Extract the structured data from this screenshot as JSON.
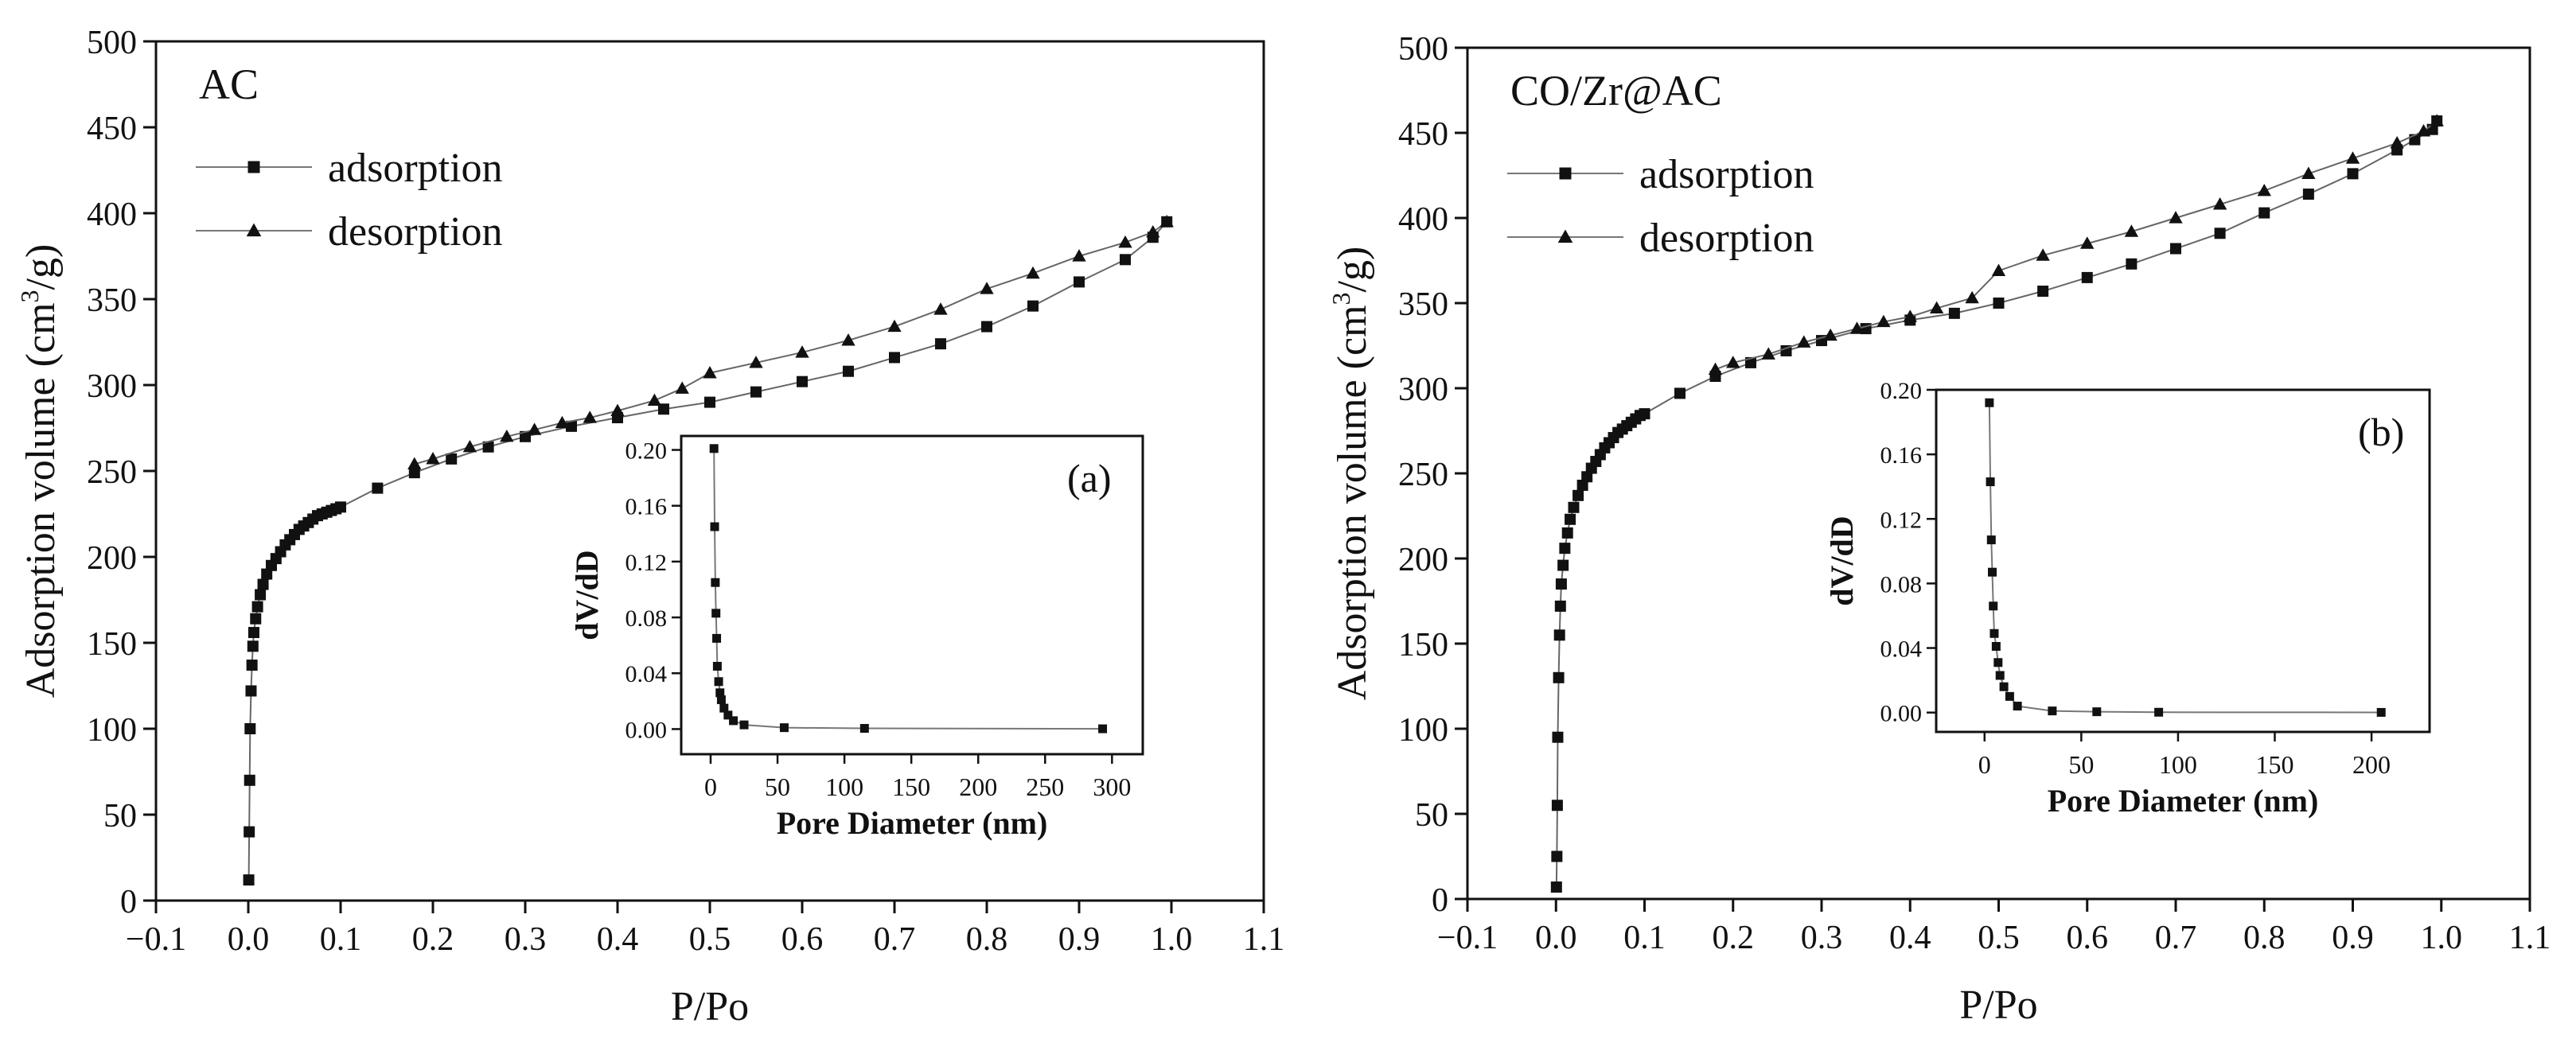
{
  "chart_data": [
    {
      "type": "line",
      "panel_label": "AC",
      "xlabel": "P/Po",
      "ylabel_main": "Adsorption volume (cm",
      "ylabel_sup": "3",
      "ylabel_tail": "/g)",
      "xlim": [
        -0.1,
        1.1
      ],
      "ylim": [
        0,
        500
      ],
      "xticks": [
        -0.1,
        0.0,
        0.1,
        0.2,
        0.3,
        0.4,
        0.5,
        0.6,
        0.7,
        0.8,
        0.9,
        1.0,
        1.1
      ],
      "xtick_labels": [
        "−0.1",
        "0.0",
        "0.1",
        "0.2",
        "0.3",
        "0.4",
        "0.5",
        "0.6",
        "0.7",
        "0.8",
        "0.9",
        "1.0",
        "1.1"
      ],
      "yticks": [
        0,
        50,
        100,
        150,
        200,
        250,
        300,
        350,
        400,
        450,
        500
      ],
      "ytick_labels": [
        "0",
        "50",
        "100",
        "150",
        "200",
        "250",
        "300",
        "350",
        "400",
        "450",
        "500"
      ],
      "legend": [
        "adsorption",
        "desorption"
      ],
      "series": [
        {
          "name": "adsorption",
          "marker": "square",
          "x": [
            0.0005,
            0.001,
            0.0015,
            0.002,
            0.003,
            0.004,
            0.005,
            0.006,
            0.008,
            0.01,
            0.013,
            0.016,
            0.02,
            0.025,
            0.03,
            0.035,
            0.04,
            0.045,
            0.05,
            0.055,
            0.06,
            0.065,
            0.07,
            0.075,
            0.08,
            0.085,
            0.09,
            0.095,
            0.1,
            0.14,
            0.18,
            0.22,
            0.26,
            0.3,
            0.35,
            0.4,
            0.45,
            0.5,
            0.55,
            0.6,
            0.65,
            0.7,
            0.75,
            0.8,
            0.85,
            0.9,
            0.95,
            0.98,
            0.995
          ],
          "y": [
            12,
            40,
            70,
            100,
            122,
            137,
            148,
            156,
            164,
            171,
            178,
            184,
            190,
            195,
            199,
            203,
            207,
            210,
            213,
            216,
            218,
            220,
            222,
            224,
            225,
            226,
            227,
            228,
            229,
            240,
            249,
            257,
            264,
            270,
            276,
            281,
            286,
            290,
            296,
            302,
            308,
            316,
            324,
            334,
            346,
            360,
            373,
            386,
            395
          ]
        },
        {
          "name": "desorption",
          "marker": "triangle",
          "x": [
            0.995,
            0.98,
            0.95,
            0.9,
            0.85,
            0.8,
            0.75,
            0.7,
            0.65,
            0.6,
            0.55,
            0.5,
            0.47,
            0.44,
            0.4,
            0.37,
            0.34,
            0.31,
            0.28,
            0.24,
            0.2,
            0.18
          ],
          "y": [
            395,
            389,
            383,
            375,
            365,
            356,
            344,
            334,
            326,
            319,
            313,
            307,
            298,
            291,
            285,
            281,
            278,
            274,
            270,
            264,
            257,
            254
          ]
        }
      ],
      "inset": {
        "label": "(a)",
        "xlabel": "Pore Diameter (nm)",
        "ylabel": "dV/dD",
        "xlim": [
          -22,
          323
        ],
        "ylim": [
          -0.018,
          0.21
        ],
        "xticks": [
          0,
          50,
          100,
          150,
          200,
          250,
          300
        ],
        "xtick_labels": [
          "0",
          "50",
          "100",
          "150",
          "200",
          "250",
          "300"
        ],
        "yticks": [
          0.0,
          0.04,
          0.08,
          0.12,
          0.16,
          0.2
        ],
        "ytick_labels": [
          "0.00",
          "0.04",
          "0.08",
          "0.12",
          "0.16",
          "0.20"
        ],
        "x": [
          2.5,
          3.0,
          3.5,
          4.0,
          4.5,
          5.0,
          6.0,
          7.0,
          8.0,
          10.0,
          13.0,
          17.0,
          25.0,
          55.0,
          115.0,
          293.0
        ],
        "y": [
          0.201,
          0.145,
          0.105,
          0.083,
          0.065,
          0.045,
          0.034,
          0.026,
          0.021,
          0.015,
          0.01,
          0.006,
          0.003,
          0.001,
          0.0005,
          0.0002
        ]
      }
    },
    {
      "type": "line",
      "panel_label": "CO/Zr@AC",
      "xlabel": "P/Po",
      "ylabel_main": "Adsorption volume (cm",
      "ylabel_sup": "3",
      "ylabel_tail": "/g)",
      "xlim": [
        -0.1,
        1.1
      ],
      "ylim": [
        0,
        500
      ],
      "xticks": [
        -0.1,
        0.0,
        0.1,
        0.2,
        0.3,
        0.4,
        0.5,
        0.6,
        0.7,
        0.8,
        0.9,
        1.0,
        1.1
      ],
      "xtick_labels": [
        "−0.1",
        "0.0",
        "0.1",
        "0.2",
        "0.3",
        "0.4",
        "0.5",
        "0.6",
        "0.7",
        "0.8",
        "0.9",
        "1.0",
        "1.1"
      ],
      "yticks": [
        0,
        50,
        100,
        150,
        200,
        250,
        300,
        350,
        400,
        450,
        500
      ],
      "ytick_labels": [
        "0",
        "50",
        "100",
        "150",
        "200",
        "250",
        "300",
        "350",
        "400",
        "450",
        "500"
      ],
      "legend": [
        "adsorption",
        "desorption"
      ],
      "series": [
        {
          "name": "adsorption",
          "marker": "square",
          "x": [
            0.0005,
            0.001,
            0.0015,
            0.002,
            0.003,
            0.004,
            0.005,
            0.006,
            0.008,
            0.01,
            0.013,
            0.016,
            0.02,
            0.025,
            0.03,
            0.035,
            0.04,
            0.045,
            0.05,
            0.055,
            0.06,
            0.065,
            0.07,
            0.075,
            0.08,
            0.085,
            0.09,
            0.095,
            0.1,
            0.14,
            0.18,
            0.22,
            0.26,
            0.3,
            0.35,
            0.4,
            0.45,
            0.5,
            0.55,
            0.6,
            0.65,
            0.7,
            0.75,
            0.8,
            0.85,
            0.9,
            0.95,
            0.97,
            0.99,
            0.995
          ],
          "y": [
            7,
            25,
            55,
            95,
            130,
            155,
            172,
            185,
            196,
            206,
            215,
            223,
            230,
            237,
            243,
            248,
            253,
            257,
            261,
            265,
            268,
            271,
            274,
            276,
            278,
            280,
            282,
            284,
            285,
            297,
            307,
            315,
            322,
            328,
            335,
            340,
            344,
            350,
            357,
            365,
            373,
            382,
            391,
            403,
            414,
            426,
            440,
            446,
            452,
            457
          ]
        },
        {
          "name": "desorption",
          "marker": "triangle",
          "x": [
            0.995,
            0.98,
            0.95,
            0.9,
            0.85,
            0.8,
            0.75,
            0.7,
            0.65,
            0.6,
            0.55,
            0.5,
            0.47,
            0.43,
            0.4,
            0.37,
            0.34,
            0.31,
            0.28,
            0.24,
            0.2,
            0.18
          ],
          "y": [
            457,
            451,
            444,
            435,
            426,
            416,
            408,
            400,
            392,
            385,
            378,
            369,
            353,
            347,
            342,
            339,
            335,
            331,
            327,
            320,
            315,
            311
          ]
        }
      ],
      "inset": {
        "label": "(b)",
        "xlabel": "Pore Diameter (nm)",
        "ylabel": "dV/dD",
        "xlim": [
          -25,
          230
        ],
        "ylim": [
          -0.012,
          0.2
        ],
        "xticks": [
          0,
          50,
          100,
          150,
          200
        ],
        "xtick_labels": [
          "0",
          "50",
          "100",
          "150",
          "200"
        ],
        "yticks": [
          0.0,
          0.04,
          0.08,
          0.12,
          0.16,
          0.2
        ],
        "ytick_labels": [
          "0.00",
          "0.04",
          "0.08",
          "0.12",
          "0.16",
          "0.20"
        ],
        "x": [
          2.5,
          3.0,
          3.5,
          4.0,
          4.5,
          5.0,
          6.0,
          7.0,
          8.0,
          10.0,
          13.0,
          17.0,
          35.0,
          58.0,
          90.0,
          205.0
        ],
        "y": [
          0.192,
          0.143,
          0.107,
          0.087,
          0.066,
          0.049,
          0.041,
          0.031,
          0.023,
          0.016,
          0.01,
          0.004,
          0.001,
          0.0005,
          0.0002,
          0.0001
        ]
      }
    }
  ]
}
